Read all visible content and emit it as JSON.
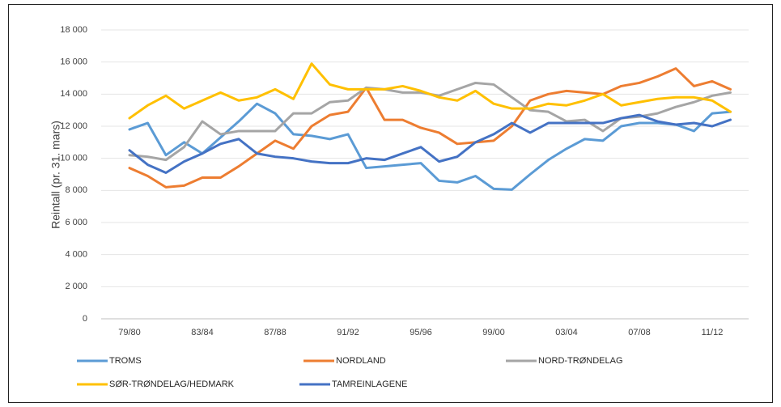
{
  "chart_data": {
    "type": "line",
    "y_label": "Reintall (pr. 31. mars)",
    "categories": [
      "79/80",
      null,
      null,
      null,
      "83/84",
      null,
      null,
      null,
      "87/88",
      null,
      null,
      null,
      "91/92",
      null,
      null,
      null,
      "95/96",
      null,
      null,
      null,
      "99/00",
      null,
      null,
      null,
      "03/04",
      null,
      null,
      null,
      "07/08",
      null,
      null,
      null,
      "11/12",
      null
    ],
    "ylim": [
      0,
      18000
    ],
    "yticks": [
      0,
      {
        "value": 2000,
        "label": "2 000"
      },
      {
        "value": 4000,
        "label": "4 000"
      },
      {
        "value": 6000,
        "label": "6 000"
      },
      {
        "value": 8000,
        "label": "8 000"
      },
      {
        "value": 10000,
        "label": "10 000"
      },
      {
        "value": 12000,
        "label": "12 000"
      },
      {
        "value": 14000,
        "label": "14 000"
      },
      {
        "value": 16000,
        "label": "16 000"
      },
      {
        "value": 18000,
        "label": "18 000"
      }
    ],
    "grid": true,
    "legend": "bottom",
    "series": [
      {
        "name": "TROMS",
        "color": "#5b9bd5",
        "values": [
          11800,
          12200,
          10200,
          11000,
          10300,
          11300,
          12300,
          13400,
          12800,
          11500,
          11400,
          11200,
          11500,
          9400,
          9500,
          9600,
          9700,
          8600,
          8500,
          8900,
          8100,
          8050,
          9000,
          9900,
          10600,
          11200,
          11100,
          12000,
          12200,
          12200,
          12100,
          11700,
          12800,
          12900
        ]
      },
      {
        "name": "NORDLAND",
        "color": "#ed7d31",
        "values": [
          9400,
          8900,
          8200,
          8300,
          8800,
          8800,
          9500,
          10300,
          11100,
          10600,
          12000,
          12700,
          12900,
          14400,
          12400,
          12400,
          11900,
          11600,
          10900,
          11000,
          11100,
          12000,
          13600,
          14000,
          14200,
          14100,
          14000,
          14500,
          14700,
          15100,
          15600,
          14500,
          14800,
          14300
        ]
      },
      {
        "name": "NORD-TRØNDELAG",
        "color": "#a5a5a5",
        "values": [
          10200,
          10100,
          9900,
          10700,
          12300,
          11500,
          11700,
          11700,
          11700,
          12800,
          12800,
          13500,
          13600,
          14400,
          14300,
          14100,
          14100,
          13900,
          14300,
          14700,
          14600,
          13800,
          13000,
          12900,
          12300,
          12400,
          11700,
          12500,
          12600,
          12800,
          13200,
          13500,
          13900,
          14100
        ]
      },
      {
        "name": "SØR-TRØNDELAG/HEDMARK",
        "color": "#ffc000",
        "values": [
          12500,
          13300,
          13900,
          13100,
          13600,
          14100,
          13600,
          13800,
          14300,
          13700,
          15900,
          14600,
          14300,
          14300,
          14300,
          14500,
          14200,
          13800,
          13600,
          14200,
          13400,
          13100,
          13100,
          13400,
          13300,
          13600,
          14000,
          13300,
          13500,
          13700,
          13800,
          13800,
          13600,
          12900
        ]
      },
      {
        "name": "TAMREINLAGENE",
        "color": "#4472c4",
        "values": [
          10500,
          9600,
          9100,
          9800,
          10300,
          10900,
          11200,
          10300,
          10100,
          10000,
          9800,
          9700,
          9700,
          10000,
          9900,
          10300,
          10700,
          9800,
          10100,
          11000,
          11500,
          12200,
          11600,
          12200,
          12200,
          12200,
          12200,
          12500,
          12700,
          12300,
          12100,
          12200,
          12000,
          12400
        ]
      }
    ]
  }
}
